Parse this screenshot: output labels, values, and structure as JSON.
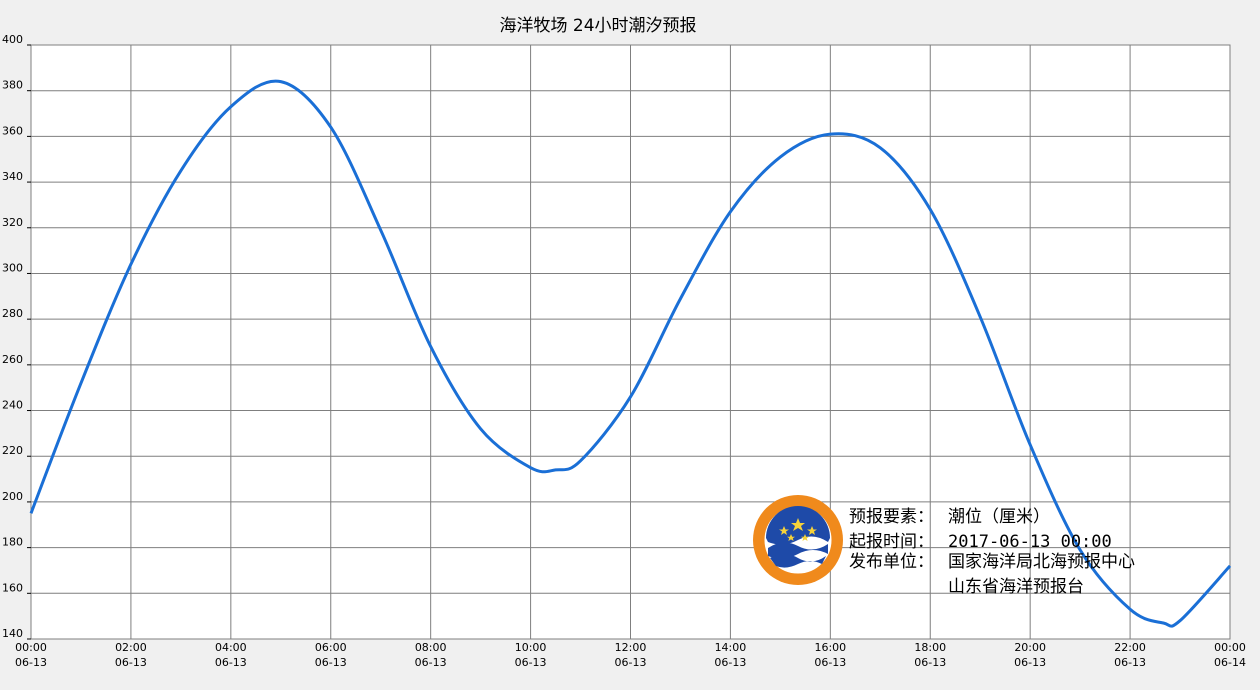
{
  "chart_data": {
    "type": "line",
    "title": "海洋牧场 24小时潮汐预报",
    "xlabel": "",
    "ylabel": "",
    "ylim": [
      140,
      400
    ],
    "yticks": [
      "140",
      "160",
      "180",
      "200",
      "220",
      "240",
      "260",
      "280",
      "300",
      "320",
      "340",
      "360",
      "380",
      "400"
    ],
    "xlim": [
      "2017-06-13 00:00",
      "2017-06-14 00:00"
    ],
    "xticks": [
      {
        "time": "00:00",
        "date": "06-13"
      },
      {
        "time": "02:00",
        "date": "06-13"
      },
      {
        "time": "04:00",
        "date": "06-13"
      },
      {
        "time": "06:00",
        "date": "06-13"
      },
      {
        "time": "08:00",
        "date": "06-13"
      },
      {
        "time": "10:00",
        "date": "06-13"
      },
      {
        "time": "12:00",
        "date": "06-13"
      },
      {
        "time": "14:00",
        "date": "06-13"
      },
      {
        "time": "16:00",
        "date": "06-13"
      },
      {
        "time": "18:00",
        "date": "06-13"
      },
      {
        "time": "20:00",
        "date": "06-13"
      },
      {
        "time": "22:00",
        "date": "06-13"
      },
      {
        "time": "00:00",
        "date": "06-14"
      }
    ],
    "grid": true,
    "line_color": "#1a6fd6",
    "series": [
      {
        "name": "",
        "points": [
          {
            "x": "2017-06-13 00:00",
            "y": 195
          },
          {
            "x": "2017-06-13 01:00",
            "y": 252
          },
          {
            "x": "2017-06-13 02:00",
            "y": 304
          },
          {
            "x": "2017-06-13 03:00",
            "y": 345
          },
          {
            "x": "2017-06-13 04:00",
            "y": 373
          },
          {
            "x": "2017-06-13 05:00",
            "y": 384
          },
          {
            "x": "2017-06-13 06:00",
            "y": 364
          },
          {
            "x": "2017-06-13 07:00",
            "y": 319
          },
          {
            "x": "2017-06-13 08:00",
            "y": 268
          },
          {
            "x": "2017-06-13 09:00",
            "y": 232
          },
          {
            "x": "2017-06-13 10:00",
            "y": 215
          },
          {
            "x": "2017-06-13 10:30",
            "y": 214
          },
          {
            "x": "2017-06-13 11:00",
            "y": 218
          },
          {
            "x": "2017-06-13 12:00",
            "y": 246
          },
          {
            "x": "2017-06-13 13:00",
            "y": 289
          },
          {
            "x": "2017-06-13 14:00",
            "y": 327
          },
          {
            "x": "2017-06-13 15:00",
            "y": 351
          },
          {
            "x": "2017-06-13 16:00",
            "y": 361
          },
          {
            "x": "2017-06-13 17:00",
            "y": 355
          },
          {
            "x": "2017-06-13 18:00",
            "y": 328
          },
          {
            "x": "2017-06-13 19:00",
            "y": 281
          },
          {
            "x": "2017-06-13 20:00",
            "y": 225
          },
          {
            "x": "2017-06-13 21:00",
            "y": 179
          },
          {
            "x": "2017-06-13 22:00",
            "y": 153
          },
          {
            "x": "2017-06-13 22:40",
            "y": 147
          },
          {
            "x": "2017-06-13 23:00",
            "y": 148
          },
          {
            "x": "2017-06-14 00:00",
            "y": 172
          }
        ]
      }
    ]
  },
  "info": {
    "element_label": "预报要素：",
    "element_value": "潮位（厘米）",
    "issue_label": "起报时间：",
    "issue_value": "2017-06-13 00:00",
    "publisher_label": "发布单位：",
    "publisher_line1": "国家海洋局北海预报中心",
    "publisher_line2": "山东省海洋预报台"
  },
  "logo": {
    "ring_color": "#f08a1c",
    "wave_color": "#1e4aa8",
    "star_color": "#f5d23a"
  }
}
